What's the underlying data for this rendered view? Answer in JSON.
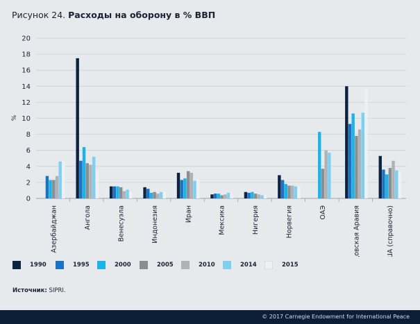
{
  "title": {
    "prefix": "Рисунок 24.",
    "main": "Расходы на оборону в % ВВП"
  },
  "source": {
    "label": "Источник:",
    "value": "SIPRI."
  },
  "footer": "© 2017 Carnegie Endowment for International Peace",
  "colors": {
    "background": "#e6eaed",
    "footer": "#0b1e35",
    "series": [
      "#0b2240",
      "#1a72c0",
      "#1cb4e8",
      "#8a8e92",
      "#b0b3b6",
      "#7ed0f2",
      "#eef0f2"
    ]
  },
  "chart_data": {
    "type": "bar",
    "title": "Расходы на оборону в % ВВП",
    "ylabel": "%",
    "xlabel": "",
    "ylim": [
      0,
      20
    ],
    "yticks": [
      0,
      2,
      4,
      6,
      8,
      10,
      12,
      14,
      16,
      18,
      20
    ],
    "grid": true,
    "legend_position": "bottom",
    "categories": [
      "Азербайджан",
      "Ангола",
      "Венесуэла",
      "Индонезия",
      "Иран",
      "Мексика",
      "Нигерия",
      "Норвегия",
      "ОАЭ",
      "Саудовская Аравия",
      "США (справочно)"
    ],
    "series": [
      {
        "name": "1990",
        "values": [
          null,
          17.5,
          1.5,
          1.4,
          3.2,
          0.5,
          0.8,
          2.9,
          null,
          14.0,
          5.3
        ]
      },
      {
        "name": "1995",
        "values": [
          2.8,
          4.7,
          1.5,
          1.2,
          2.3,
          0.6,
          0.7,
          2.3,
          null,
          9.3,
          3.6
        ]
      },
      {
        "name": "2000",
        "values": [
          2.3,
          6.4,
          1.5,
          0.7,
          2.5,
          0.6,
          0.8,
          1.8,
          8.3,
          10.6,
          3.0
        ]
      },
      {
        "name": "2005",
        "values": [
          2.3,
          4.4,
          1.4,
          0.8,
          3.4,
          0.4,
          0.6,
          1.6,
          3.7,
          7.8,
          3.8
        ]
      },
      {
        "name": "2010",
        "values": [
          2.8,
          4.2,
          0.9,
          0.6,
          3.2,
          0.5,
          0.5,
          1.6,
          6.0,
          8.6,
          4.7
        ]
      },
      {
        "name": "2014",
        "values": [
          4.6,
          5.2,
          1.1,
          0.8,
          2.2,
          0.7,
          0.4,
          1.5,
          5.7,
          10.7,
          3.5
        ]
      },
      {
        "name": "2015",
        "values": [
          4.6,
          3.5,
          0.8,
          0.9,
          2.4,
          0.6,
          0.4,
          1.5,
          null,
          13.7,
          3.3
        ]
      }
    ]
  }
}
